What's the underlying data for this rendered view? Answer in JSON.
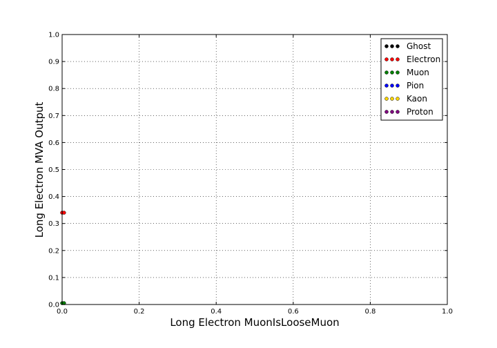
{
  "chart_data": {
    "type": "scatter",
    "title": "",
    "xlabel": "Long Electron MuonIsLooseMuon",
    "ylabel": "Long Electron MVA Output",
    "xlim": [
      0,
      1
    ],
    "ylim": [
      0,
      1
    ],
    "grid": true,
    "legend_position": "top-right",
    "x_ticks": [
      "0.0",
      "0.2",
      "0.4",
      "0.6",
      "0.8",
      "1.0"
    ],
    "y_ticks": [
      "0.0",
      "0.1",
      "0.2",
      "0.3",
      "0.4",
      "0.5",
      "0.6",
      "0.7",
      "0.8",
      "0.9",
      "1.0"
    ],
    "series": [
      {
        "name": "Ghost",
        "color": "#000000",
        "points": []
      },
      {
        "name": "Electron",
        "color": "#ff0000",
        "points": [
          [
            0.0,
            0.34
          ],
          [
            0.005,
            0.34
          ]
        ]
      },
      {
        "name": "Muon",
        "color": "#008000",
        "points": [
          [
            0.0,
            0.005
          ],
          [
            0.005,
            0.005
          ]
        ]
      },
      {
        "name": "Pion",
        "color": "#0000ff",
        "points": []
      },
      {
        "name": "Kaon",
        "color": "#ffd700",
        "points": []
      },
      {
        "name": "Proton",
        "color": "#800080",
        "points": []
      }
    ]
  }
}
